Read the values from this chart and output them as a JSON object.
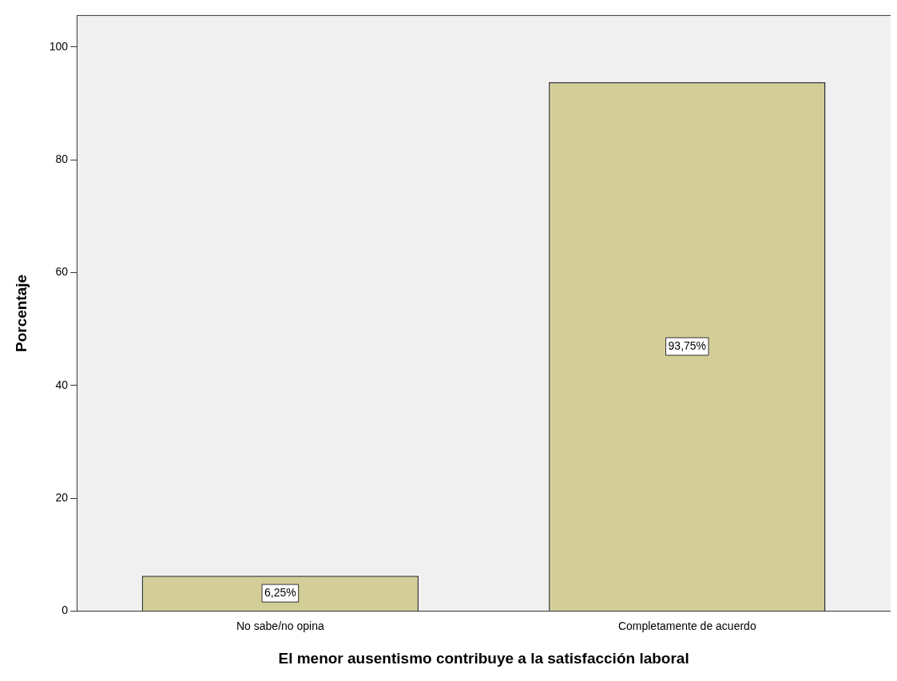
{
  "chart_data": {
    "type": "bar",
    "xlabel": "El menor ausentismo contribuye a la satisfacción laboral",
    "ylabel": "Porcentaje",
    "categories": [
      "No sabe/no opina",
      "Completamente de acuerdo"
    ],
    "values": [
      6.25,
      93.75
    ],
    "value_labels": [
      "6,25%",
      "93,75%"
    ],
    "color": "#d3ce97",
    "ylim": [
      0,
      105.6
    ],
    "yticks": [
      0,
      20,
      40,
      60,
      80,
      100
    ],
    "grid": false,
    "legend": false
  }
}
